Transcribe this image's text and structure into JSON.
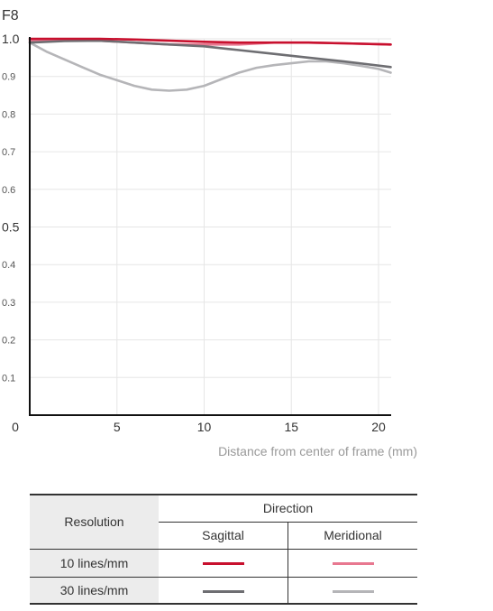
{
  "chart_data": {
    "type": "line",
    "title": "F8",
    "xlabel": "Distance from center of frame (mm)",
    "ylabel": "",
    "xlim": [
      0,
      20.7
    ],
    "ylim": [
      0,
      1.0
    ],
    "x_ticks": [
      "0",
      "5",
      "10",
      "15",
      "20"
    ],
    "x_tick_values": [
      0,
      5,
      10,
      15,
      20
    ],
    "y_ticks": [
      "0.1",
      "0.2",
      "0.3",
      "0.4",
      "0.5",
      "0.6",
      "0.7",
      "0.8",
      "0.9",
      "1.0"
    ],
    "y_tick_values": [
      0.1,
      0.2,
      0.3,
      0.4,
      0.5,
      0.6,
      0.7,
      0.8,
      0.9,
      1.0
    ],
    "grid": true,
    "series": [
      {
        "name": "10 lines/mm Sagittal",
        "color": "#c8102e",
        "style": "solid",
        "x": [
          0,
          2,
          4,
          6,
          8,
          10,
          12,
          14,
          16,
          18,
          20.7
        ],
        "y": [
          1.0,
          1.0,
          1.0,
          0.998,
          0.995,
          0.992,
          0.99,
          0.99,
          0.99,
          0.988,
          0.985
        ]
      },
      {
        "name": "10 lines/mm Meridional",
        "color": "#e87890",
        "style": "solid",
        "x": [
          0,
          2,
          4,
          6,
          8,
          10,
          12,
          14,
          16,
          18,
          20.7
        ],
        "y": [
          0.995,
          0.995,
          0.995,
          0.99,
          0.985,
          0.985,
          0.985,
          0.99,
          0.99,
          0.988,
          0.985
        ]
      },
      {
        "name": "30 lines/mm Sagittal",
        "color": "#6e6e72",
        "style": "solid",
        "x": [
          0,
          2,
          4,
          6,
          8,
          10,
          12,
          14,
          16,
          18,
          20.7
        ],
        "y": [
          0.99,
          0.994,
          0.995,
          0.99,
          0.985,
          0.98,
          0.97,
          0.96,
          0.95,
          0.94,
          0.925
        ]
      },
      {
        "name": "30 lines/mm Meridional",
        "color": "#b5b5b8",
        "style": "solid",
        "x": [
          0,
          1,
          2,
          3,
          4,
          5,
          6,
          7,
          8,
          9,
          10,
          11,
          12,
          13,
          14,
          15,
          16,
          17,
          18,
          19,
          20,
          20.7
        ],
        "y": [
          0.99,
          0.965,
          0.945,
          0.925,
          0.905,
          0.89,
          0.875,
          0.865,
          0.862,
          0.865,
          0.875,
          0.893,
          0.91,
          0.923,
          0.93,
          0.935,
          0.94,
          0.94,
          0.935,
          0.928,
          0.92,
          0.91
        ]
      }
    ]
  },
  "legend_table": {
    "resolution_header": "Resolution",
    "direction_header": "Direction",
    "sagittal_header": "Sagittal",
    "meridional_header": "Meridional",
    "rows": [
      {
        "label": "10 lines/mm",
        "sagittal_color": "#c8102e",
        "meridional_color": "#e87890"
      },
      {
        "label": "30 lines/mm",
        "sagittal_color": "#6e6e72",
        "meridional_color": "#b5b5b8"
      }
    ]
  }
}
